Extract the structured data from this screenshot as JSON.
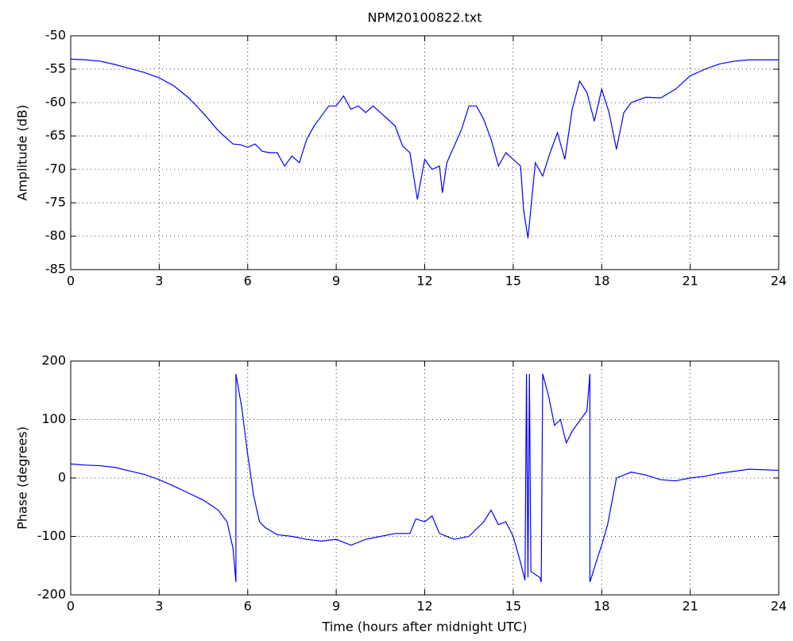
{
  "chart_data": [
    {
      "type": "line",
      "title": "NPM20100822.txt",
      "y_label": "Amplitude (dB)",
      "xlim": [
        0,
        24
      ],
      "xticks": [
        0,
        3,
        6,
        9,
        12,
        15,
        18,
        21,
        24
      ],
      "ylim": [
        -85,
        -50
      ],
      "yticks": [
        -85,
        -80,
        -75,
        -70,
        -65,
        -60,
        -55,
        -50
      ],
      "grid": true,
      "x": [
        0,
        0.5,
        1,
        1.5,
        2,
        2.5,
        3,
        3.5,
        4,
        4.5,
        5,
        5.5,
        5.75,
        6,
        6.25,
        6.5,
        6.75,
        7,
        7.25,
        7.5,
        7.75,
        8,
        8.25,
        8.5,
        8.75,
        9,
        9.25,
        9.5,
        9.75,
        10,
        10.25,
        10.5,
        10.75,
        11,
        11.25,
        11.5,
        11.75,
        12,
        12.25,
        12.5,
        12.6,
        12.75,
        13,
        13.25,
        13.5,
        13.75,
        14,
        14.25,
        14.5,
        14.75,
        15,
        15.25,
        15.35,
        15.5,
        15.75,
        16,
        16.25,
        16.5,
        16.75,
        17,
        17.25,
        17.5,
        17.75,
        18,
        18.25,
        18.5,
        18.75,
        19,
        19.5,
        20,
        20.5,
        21,
        21.5,
        22,
        22.5,
        23,
        23.5,
        24
      ],
      "series": [
        {
          "color": "#0000ff",
          "values": [
            -53.5,
            -53.6,
            -53.8,
            -54.3,
            -54.9,
            -55.5,
            -56.3,
            -57.5,
            -59.3,
            -61.6,
            -64.2,
            -66.2,
            -66.3,
            -66.7,
            -66.2,
            -67.3,
            -67.5,
            -67.5,
            -69.5,
            -68.0,
            -69.0,
            -65.5,
            -63.5,
            -62.0,
            -60.5,
            -60.5,
            -59.0,
            -61.0,
            -60.5,
            -61.5,
            -60.5,
            -61.5,
            -62.5,
            -63.5,
            -66.5,
            -67.5,
            -74.5,
            -68.5,
            -70.0,
            -69.5,
            -73.5,
            -69.0,
            -66.5,
            -64.0,
            -60.5,
            -60.5,
            -62.5,
            -65.5,
            -69.5,
            -67.5,
            -68.5,
            -69.5,
            -76.0,
            -80.3,
            -69.0,
            -71.0,
            -67.5,
            -64.5,
            -68.5,
            -61.0,
            -56.8,
            -58.5,
            -62.8,
            -58.0,
            -61.5,
            -67.0,
            -61.5,
            -60.0,
            -59.2,
            -59.3,
            -58.0,
            -56.0,
            -55.0,
            -54.2,
            -53.8,
            -53.6,
            -53.6,
            -53.6
          ]
        }
      ]
    },
    {
      "type": "line",
      "x_label": "Time (hours after midnight UTC)",
      "y_label": "Phase (degrees)",
      "xlim": [
        0,
        24
      ],
      "xticks": [
        0,
        3,
        6,
        9,
        12,
        15,
        18,
        21,
        24
      ],
      "ylim": [
        -200,
        200
      ],
      "yticks": [
        -200,
        -100,
        0,
        100,
        200
      ],
      "grid": true,
      "x": [
        0,
        0.5,
        1,
        1.5,
        2,
        2.5,
        3,
        3.5,
        4,
        4.5,
        5,
        5.3,
        5.5,
        5.6,
        5.6,
        5.8,
        6,
        6.2,
        6.4,
        6.6,
        7,
        7.5,
        8,
        8.5,
        9,
        9.5,
        10,
        10.5,
        11,
        11.5,
        11.7,
        12,
        12.25,
        12.5,
        13,
        13.5,
        14,
        14.25,
        14.5,
        14.75,
        15,
        15.25,
        15.4,
        15.45,
        15.5,
        15.55,
        15.6,
        15.9,
        15.95,
        16,
        16.2,
        16.4,
        16.6,
        16.8,
        17,
        17.5,
        17.6,
        17.6,
        17.9,
        18,
        18.2,
        18.5,
        19,
        19.5,
        20,
        20.5,
        21,
        21.5,
        22,
        23,
        24
      ],
      "series": [
        {
          "color": "#0000ff",
          "values": [
            24,
            22,
            21,
            18,
            12,
            6,
            -3,
            -14,
            -26,
            -38,
            -55,
            -75,
            -120,
            -178,
            178,
            120,
            40,
            -30,
            -75,
            -85,
            -97,
            -100,
            -105,
            -108,
            -105,
            -115,
            -105,
            -100,
            -95,
            -95,
            -70,
            -75,
            -65,
            -95,
            -105,
            -100,
            -75,
            -55,
            -80,
            -75,
            -100,
            -145,
            -175,
            178,
            -170,
            178,
            -160,
            -170,
            -178,
            178,
            140,
            90,
            100,
            60,
            80,
            115,
            178,
            -178,
            -130,
            -115,
            -80,
            0,
            10,
            5,
            -3,
            -5,
            0,
            3,
            8,
            15,
            13
          ]
        }
      ]
    }
  ]
}
